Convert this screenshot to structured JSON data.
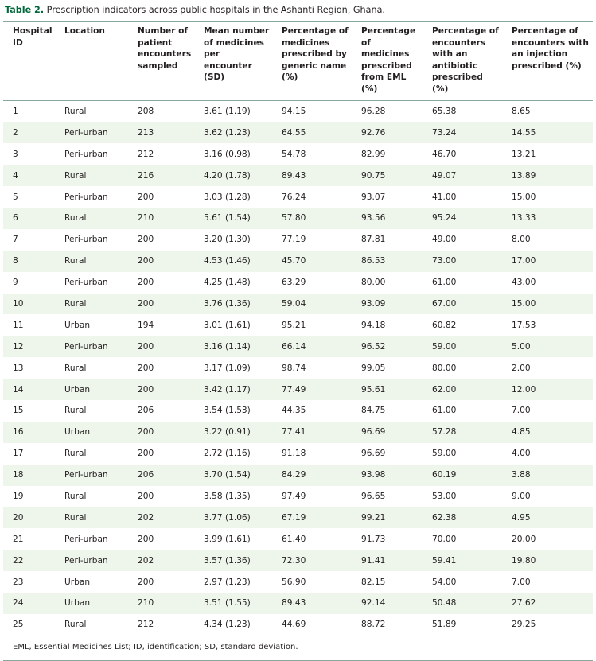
{
  "caption": {
    "label": "Table 2.",
    "text": "Prescription indicators across public hospitals in the Ashanti Region, Ghana."
  },
  "columns": [
    "Hospital ID",
    "Location",
    "Number of patient encounters sampled",
    "Mean number of medicines per encounter (SD)",
    "Percentage of medicines prescribed by generic name (%)",
    "Percentage of medicines prescribed from EML (%)",
    "Percentage of encounters with an antibiotic prescribed (%)",
    "Percentage of encounters with an injection prescribed (%)"
  ],
  "rows": [
    [
      "1",
      "Rural",
      "208",
      "3.61 (1.19)",
      "94.15",
      "96.28",
      "65.38",
      "8.65"
    ],
    [
      "2",
      "Peri-urban",
      "213",
      "3.62 (1.23)",
      "64.55",
      "92.76",
      "73.24",
      "14.55"
    ],
    [
      "3",
      "Peri-urban",
      "212",
      "3.16 (0.98)",
      "54.78",
      "82.99",
      "46.70",
      "13.21"
    ],
    [
      "4",
      "Rural",
      "216",
      "4.20 (1.78)",
      "89.43",
      "90.75",
      "49.07",
      "13.89"
    ],
    [
      "5",
      "Peri-urban",
      "200",
      "3.03 (1.28)",
      "76.24",
      "93.07",
      "41.00",
      "15.00"
    ],
    [
      "6",
      "Rural",
      "210",
      "5.61 (1.54)",
      "57.80",
      "93.56",
      "95.24",
      "13.33"
    ],
    [
      "7",
      "Peri-urban",
      "200",
      "3.20 (1.30)",
      "77.19",
      "87.81",
      "49.00",
      "8.00"
    ],
    [
      "8",
      "Rural",
      "200",
      "4.53 (1.46)",
      "45.70",
      "86.53",
      "73.00",
      "17.00"
    ],
    [
      "9",
      "Peri-urban",
      "200",
      "4.25 (1.48)",
      "63.29",
      "80.00",
      "61.00",
      "43.00"
    ],
    [
      "10",
      "Rural",
      "200",
      "3.76 (1.36)",
      "59.04",
      "93.09",
      "67.00",
      "15.00"
    ],
    [
      "11",
      "Urban",
      "194",
      "3.01 (1.61)",
      "95.21",
      "94.18",
      "60.82",
      "17.53"
    ],
    [
      "12",
      "Peri-urban",
      "200",
      "3.16 (1.14)",
      "66.14",
      "96.52",
      "59.00",
      "5.00"
    ],
    [
      "13",
      "Rural",
      "200",
      "3.17 (1.09)",
      "98.74",
      "99.05",
      "80.00",
      "2.00"
    ],
    [
      "14",
      "Urban",
      "200",
      "3.42 (1.17)",
      "77.49",
      "95.61",
      "62.00",
      "12.00"
    ],
    [
      "15",
      "Rural",
      "206",
      "3.54 (1.53)",
      "44.35",
      "84.75",
      "61.00",
      "7.00"
    ],
    [
      "16",
      "Urban",
      "200",
      "3.22 (0.91)",
      "77.41",
      "96.69",
      "57.28",
      "4.85"
    ],
    [
      "17",
      "Rural",
      "200",
      "2.72 (1.16)",
      "91.18",
      "96.69",
      "59.00",
      "4.00"
    ],
    [
      "18",
      "Peri-urban",
      "206",
      "3.70 (1.54)",
      "84.29",
      "93.98",
      "60.19",
      "3.88"
    ],
    [
      "19",
      "Rural",
      "200",
      "3.58 (1.35)",
      "97.49",
      "96.65",
      "53.00",
      "9.00"
    ],
    [
      "20",
      "Rural",
      "202",
      "3.77 (1.06)",
      "67.19",
      "99.21",
      "62.38",
      "4.95"
    ],
    [
      "21",
      "Peri-urban",
      "200",
      "3.99 (1.61)",
      "61.40",
      "91.73",
      "70.00",
      "20.00"
    ],
    [
      "22",
      "Peri-urban",
      "202",
      "3.57 (1.36)",
      "72.30",
      "91.41",
      "59.41",
      "19.80"
    ],
    [
      "23",
      "Urban",
      "200",
      "2.97 (1.23)",
      "56.90",
      "82.15",
      "54.00",
      "7.00"
    ],
    [
      "24",
      "Urban",
      "210",
      "3.51 (1.55)",
      "89.43",
      "92.14",
      "50.48",
      "27.62"
    ],
    [
      "25",
      "Rural",
      "212",
      "4.34 (1.23)",
      "44.69",
      "88.72",
      "51.89",
      "29.25"
    ]
  ],
  "footnote": "EML, Essential Medicines List; ID, identification; SD, standard deviation."
}
